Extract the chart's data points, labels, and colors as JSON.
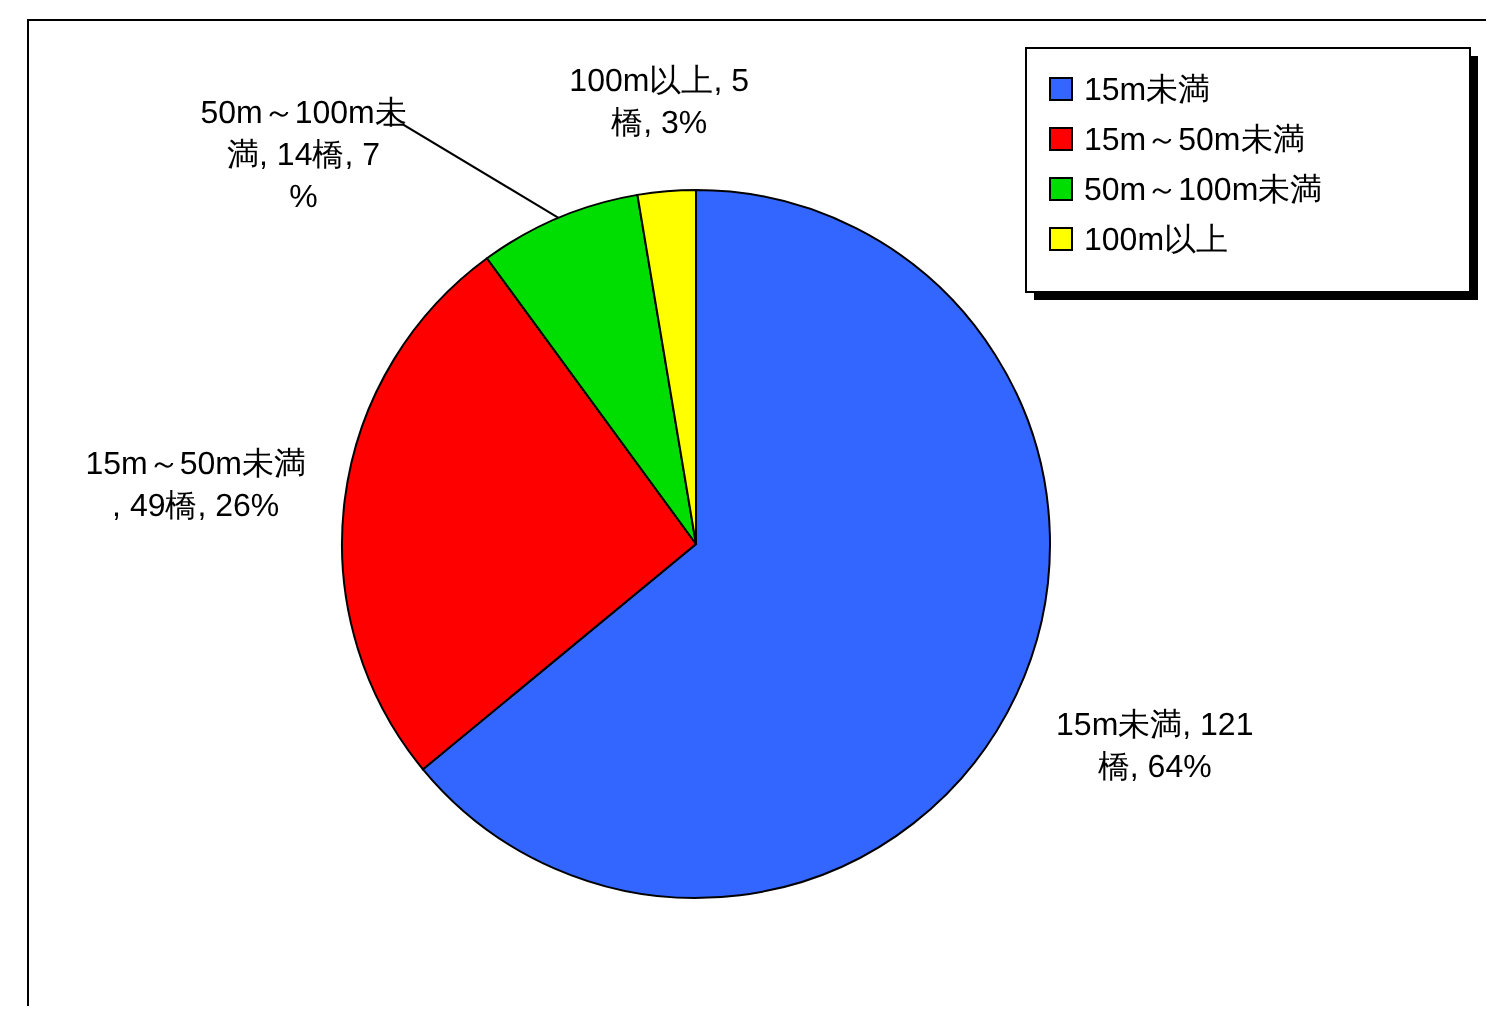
{
  "chart_data": {
    "type": "pie",
    "categories": [
      "15m未満",
      "15m～50m未満",
      "50m～100m未満",
      "100m以上"
    ],
    "values": [
      121,
      49,
      14,
      5
    ],
    "colors": [
      "#3366ff",
      "#ff0000",
      "#00dd00",
      "#ffff00"
    ],
    "value_labels": [
      "15m未満, 121橋, 64%",
      "15m～50m未満, 49橋, 26%",
      "50m～100m未満, 14橋, 7%",
      "100m以上, 5橋, 3%"
    ],
    "legend": "top right"
  }
}
